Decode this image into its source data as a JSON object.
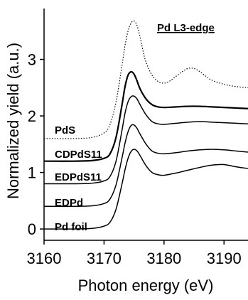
{
  "chart_data": {
    "type": "line",
    "title": "Pd L3-edge",
    "xlabel": "Photon energy (eV)",
    "ylabel": "Normalized yield (a.u.)",
    "xlim": [
      3160,
      3194
    ],
    "ylim": [
      -0.2,
      3.9
    ],
    "xticks": [
      3160,
      3170,
      3180,
      3190
    ],
    "yticks": [
      0,
      1,
      2,
      3
    ],
    "series": [
      {
        "name": "Pd foil",
        "style": "solid",
        "x": [
          3160,
          3165,
          3168,
          3170,
          3171,
          3172,
          3173,
          3173.5,
          3174,
          3174.5,
          3175,
          3175.5,
          3176,
          3177,
          3178,
          3179,
          3180,
          3182,
          3184,
          3186,
          3188,
          3190,
          3192,
          3194
        ],
        "values": [
          0.0,
          0.0,
          0.01,
          0.05,
          0.12,
          0.35,
          0.8,
          1.05,
          1.25,
          1.37,
          1.41,
          1.38,
          1.3,
          1.12,
          1.0,
          0.96,
          0.95,
          0.99,
          1.04,
          1.09,
          1.13,
          1.14,
          1.1,
          1.07
        ]
      },
      {
        "name": "EDPd",
        "style": "solid",
        "x": [
          3160,
          3165,
          3168,
          3170,
          3171,
          3172,
          3173,
          3173.5,
          3174,
          3174.5,
          3175,
          3175.5,
          3176,
          3177,
          3178,
          3179,
          3180,
          3182,
          3184,
          3186,
          3188,
          3190,
          3192,
          3194
        ],
        "values": [
          0.4,
          0.4,
          0.41,
          0.45,
          0.53,
          0.78,
          1.26,
          1.52,
          1.72,
          1.83,
          1.84,
          1.78,
          1.68,
          1.5,
          1.38,
          1.34,
          1.33,
          1.35,
          1.38,
          1.4,
          1.41,
          1.4,
          1.38,
          1.36
        ]
      },
      {
        "name": "EDPdS11",
        "style": "solid",
        "x": [
          3160,
          3165,
          3168,
          3170,
          3171,
          3172,
          3173,
          3173.5,
          3174,
          3174.5,
          3175,
          3175.5,
          3176,
          3177,
          3178,
          3179,
          3180,
          3182,
          3184,
          3186,
          3188,
          3190,
          3192,
          3194
        ],
        "values": [
          0.8,
          0.8,
          0.81,
          0.85,
          0.93,
          1.2,
          1.75,
          2.05,
          2.25,
          2.34,
          2.35,
          2.3,
          2.2,
          2.02,
          1.9,
          1.86,
          1.85,
          1.87,
          1.89,
          1.9,
          1.89,
          1.88,
          1.87,
          1.86
        ]
      },
      {
        "name": "CDPdS11",
        "style": "solid",
        "x": [
          3160,
          3165,
          3168,
          3170,
          3171,
          3172,
          3173,
          3173.5,
          3174,
          3174.5,
          3175,
          3175.5,
          3176,
          3177,
          3178,
          3179,
          3180,
          3182,
          3184,
          3186,
          3188,
          3190,
          3192,
          3194
        ],
        "values": [
          1.2,
          1.2,
          1.21,
          1.25,
          1.33,
          1.62,
          2.2,
          2.52,
          2.72,
          2.78,
          2.74,
          2.62,
          2.48,
          2.3,
          2.2,
          2.16,
          2.15,
          2.16,
          2.17,
          2.17,
          2.16,
          2.15,
          2.14,
          2.13
        ]
      },
      {
        "name": "PdS",
        "style": "dotted",
        "x": [
          3160,
          3165,
          3168,
          3170,
          3171,
          3172,
          3173,
          3173.5,
          3174,
          3174.5,
          3175,
          3175.5,
          3176,
          3176.5,
          3177,
          3178,
          3179,
          3180,
          3181,
          3182,
          3183,
          3184,
          3185,
          3186,
          3187,
          3188,
          3190,
          3192,
          3194
        ],
        "values": [
          1.6,
          1.6,
          1.62,
          1.7,
          1.85,
          2.25,
          2.9,
          3.25,
          3.5,
          3.64,
          3.68,
          3.6,
          3.4,
          3.15,
          2.95,
          2.72,
          2.61,
          2.58,
          2.62,
          2.7,
          2.78,
          2.84,
          2.84,
          2.78,
          2.7,
          2.63,
          2.56,
          2.52,
          2.5
        ]
      }
    ]
  }
}
